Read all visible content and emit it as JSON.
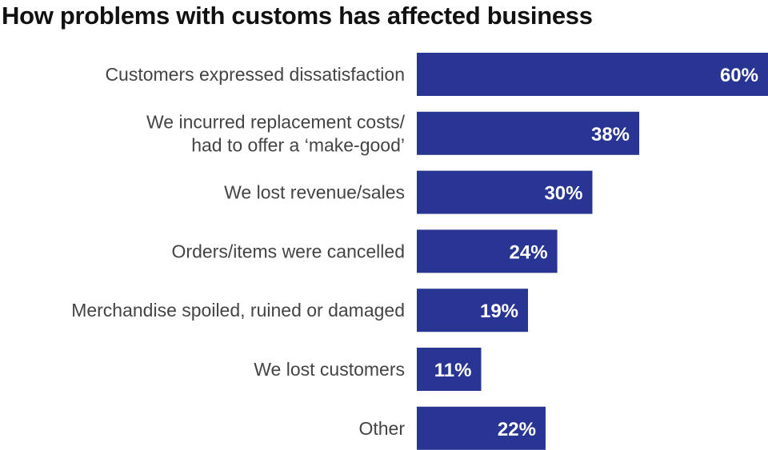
{
  "chart_data": {
    "type": "bar",
    "orientation": "horizontal",
    "title": "How problems with customs has affected business",
    "categories": [
      [
        "Customers expressed dissatisfaction"
      ],
      [
        "We incurred replacement costs/",
        "had to offer a ‘make-good’"
      ],
      [
        "We lost revenue/sales"
      ],
      [
        "Orders/items were cancelled"
      ],
      [
        "Merchandise spoiled, ruined or damaged"
      ],
      [
        "We lost customers"
      ],
      [
        "Other"
      ]
    ],
    "values": [
      60,
      38,
      30,
      24,
      19,
      11,
      22
    ],
    "value_labels": [
      "60%",
      "38%",
      "30%",
      "24%",
      "19%",
      "11%",
      "22%"
    ],
    "unit": "%",
    "xlim": [
      0,
      60
    ],
    "grid": false,
    "bar_color": "#283593",
    "value_label_color": "#ffffff"
  }
}
